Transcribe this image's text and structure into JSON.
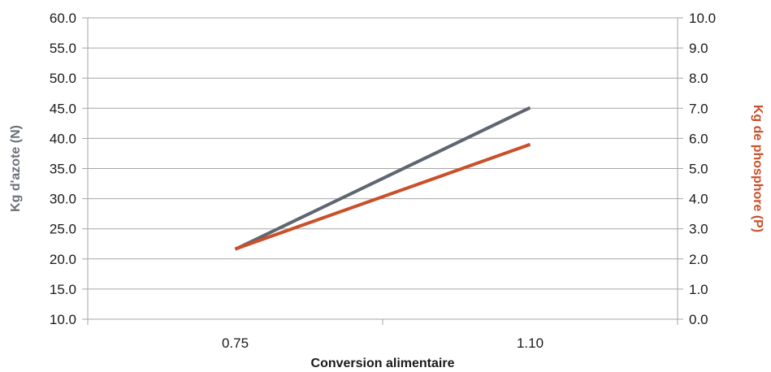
{
  "chart_data": {
    "type": "line",
    "categories": [
      "0.75",
      "1.10"
    ],
    "xlabel": "Conversion alimentaire",
    "ylabel_left": "Kg d'azote (N)",
    "ylabel_right": "Kg de phosphore (P)",
    "ylim_left": [
      10,
      60
    ],
    "ylim_right": [
      0,
      10
    ],
    "yticks_left": [
      "10.0",
      "15.0",
      "20.0",
      "25.0",
      "30.0",
      "35.0",
      "40.0",
      "45.0",
      "50.0",
      "55.0",
      "60.0"
    ],
    "yticks_right": [
      "0.0",
      "1.0",
      "2.0",
      "3.0",
      "4.0",
      "5.0",
      "6.0",
      "7.0",
      "8.0",
      "9.0",
      "10.0"
    ],
    "grid": true,
    "series": [
      {
        "axis": "left",
        "color": "#5f6670",
        "values": [
          21.6,
          45.1
        ]
      },
      {
        "axis": "right",
        "color": "#c9502a",
        "values": [
          2.33,
          5.8
        ]
      }
    ],
    "colors": {
      "left_axis_title": "#6b7078",
      "right_axis_title": "#c9502a",
      "grid": "#a6a6a6"
    }
  }
}
